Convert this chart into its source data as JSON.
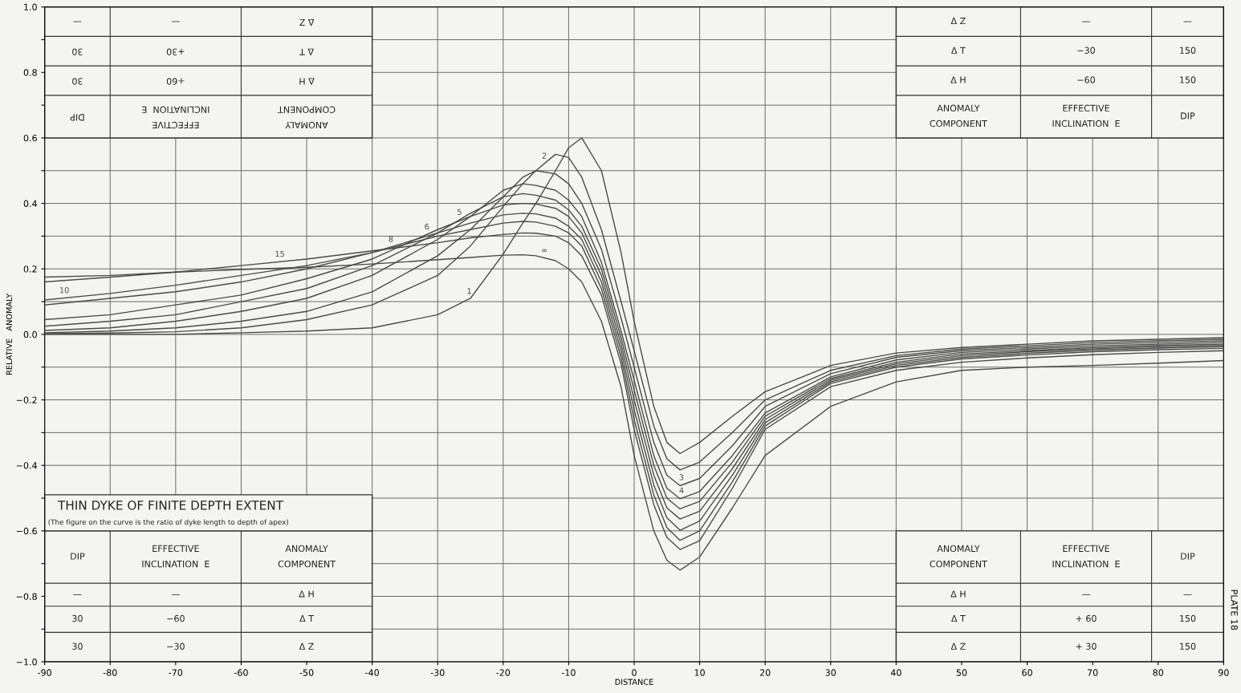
{
  "chart_data": {
    "type": "line",
    "title": "THIN DYKE OF FINITE DEPTH EXTENT",
    "subtitle": "(The figure on the curve is the ratio of dyke length to depth of apex)",
    "xlabel": "DISTANCE",
    "ylabel": "RELATIVE   ANOMALY",
    "x": [
      -90,
      -80,
      -70,
      -60,
      -50,
      -40,
      -30,
      -25,
      -20,
      -17,
      -15,
      -12,
      -10,
      -8,
      -5,
      -2,
      0,
      3,
      5,
      7,
      10,
      15,
      20,
      30,
      40,
      50,
      60,
      70,
      80,
      90
    ],
    "series": [
      {
        "name": "1",
        "color": "#4a4a4a",
        "values": [
          0,
          0,
          0,
          0.005,
          0.01,
          0.02,
          0.06,
          0.11,
          0.245,
          0.34,
          0.4,
          0.5,
          0.57,
          0.6,
          0.5,
          0.25,
          0.04,
          -0.22,
          -0.33,
          -0.364,
          -0.33,
          -0.25,
          -0.175,
          -0.095,
          -0.057,
          -0.04,
          -0.03,
          -0.02,
          -0.015,
          -0.01
        ]
      },
      {
        "name": "2",
        "color": "#4a4a4a",
        "values": [
          0.002,
          0.004,
          0.008,
          0.02,
          0.045,
          0.09,
          0.18,
          0.27,
          0.39,
          0.46,
          0.5,
          0.55,
          0.54,
          0.48,
          0.32,
          0.1,
          -0.05,
          -0.28,
          -0.38,
          -0.414,
          -0.39,
          -0.3,
          -0.2,
          -0.11,
          -0.065,
          -0.045,
          -0.035,
          -0.025,
          -0.02,
          -0.015
        ]
      },
      {
        "name": "3",
        "color": "#4a4a4a",
        "values": [
          0.005,
          0.01,
          0.02,
          0.04,
          0.07,
          0.13,
          0.24,
          0.32,
          0.42,
          0.48,
          0.5,
          0.49,
          0.46,
          0.4,
          0.26,
          0.05,
          -0.1,
          -0.33,
          -0.43,
          -0.462,
          -0.44,
          -0.34,
          -0.22,
          -0.12,
          -0.07,
          -0.05,
          -0.04,
          -0.03,
          -0.025,
          -0.02
        ]
      },
      {
        "name": "4",
        "color": "#4a4a4a",
        "values": [
          0.012,
          0.02,
          0.04,
          0.07,
          0.11,
          0.18,
          0.29,
          0.36,
          0.44,
          0.46,
          0.455,
          0.44,
          0.41,
          0.36,
          0.22,
          0.01,
          -0.14,
          -0.37,
          -0.47,
          -0.502,
          -0.48,
          -0.37,
          -0.24,
          -0.13,
          -0.078,
          -0.055,
          -0.045,
          -0.035,
          -0.03,
          -0.025
        ]
      },
      {
        "name": "5",
        "color": "#4a4a4a",
        "values": [
          0.025,
          0.04,
          0.06,
          0.1,
          0.14,
          0.21,
          0.31,
          0.37,
          0.42,
          0.43,
          0.425,
          0.41,
          0.38,
          0.33,
          0.2,
          -0.01,
          -0.17,
          -0.4,
          -0.5,
          -0.533,
          -0.51,
          -0.39,
          -0.25,
          -0.135,
          -0.085,
          -0.06,
          -0.05,
          -0.04,
          -0.034,
          -0.03
        ]
      },
      {
        "name": "6",
        "color": "#4a4a4a",
        "values": [
          0.045,
          0.06,
          0.09,
          0.12,
          0.17,
          0.23,
          0.32,
          0.36,
          0.395,
          0.4,
          0.398,
          0.385,
          0.36,
          0.31,
          0.18,
          -0.03,
          -0.2,
          -0.43,
          -0.53,
          -0.564,
          -0.54,
          -0.41,
          -0.26,
          -0.14,
          -0.09,
          -0.065,
          -0.053,
          -0.044,
          -0.038,
          -0.034
        ]
      },
      {
        "name": "8",
        "color": "#4a4a4a",
        "values": [
          0.09,
          0.11,
          0.13,
          0.16,
          0.2,
          0.25,
          0.31,
          0.34,
          0.365,
          0.37,
          0.368,
          0.355,
          0.33,
          0.29,
          0.16,
          -0.05,
          -0.23,
          -0.46,
          -0.56,
          -0.598,
          -0.57,
          -0.43,
          -0.27,
          -0.145,
          -0.095,
          -0.07,
          -0.058,
          -0.048,
          -0.042,
          -0.038
        ]
      },
      {
        "name": "10",
        "color": "#4a4a4a",
        "values": [
          0.105,
          0.125,
          0.15,
          0.18,
          0.21,
          0.25,
          0.3,
          0.32,
          0.34,
          0.345,
          0.343,
          0.33,
          0.31,
          0.27,
          0.14,
          -0.07,
          -0.26,
          -0.49,
          -0.59,
          -0.629,
          -0.6,
          -0.45,
          -0.28,
          -0.15,
          -0.1,
          -0.075,
          -0.063,
          -0.053,
          -0.047,
          -0.043
        ]
      },
      {
        "name": "15",
        "color": "#4a4a4a",
        "values": [
          0.16,
          0.175,
          0.19,
          0.21,
          0.23,
          0.255,
          0.28,
          0.295,
          0.305,
          0.31,
          0.309,
          0.3,
          0.28,
          0.24,
          0.12,
          -0.09,
          -0.29,
          -0.52,
          -0.62,
          -0.657,
          -0.63,
          -0.47,
          -0.29,
          -0.16,
          -0.11,
          -0.085,
          -0.072,
          -0.062,
          -0.055,
          -0.05
        ]
      },
      {
        "name": "∞",
        "color": "#4a4a4a",
        "values": [
          0.175,
          0.18,
          0.19,
          0.198,
          0.205,
          0.215,
          0.228,
          0.235,
          0.242,
          0.243,
          0.24,
          0.225,
          0.2,
          0.16,
          0.04,
          -0.16,
          -0.37,
          -0.6,
          -0.69,
          -0.72,
          -0.68,
          -0.53,
          -0.37,
          -0.22,
          -0.145,
          -0.11,
          -0.1,
          -0.095,
          -0.088,
          -0.08
        ]
      }
    ],
    "xlim": [
      -90,
      90
    ],
    "xticks": [
      -90,
      -80,
      -70,
      -60,
      -50,
      -40,
      -30,
      -20,
      -10,
      0,
      10,
      20,
      30,
      40,
      50,
      60,
      70,
      80,
      90
    ],
    "ylim": [
      -1.0,
      1.0
    ],
    "yticks": [
      {
        "value": -1.0,
        "label": "−1.0"
      },
      {
        "value": -0.9,
        "label": null
      },
      {
        "value": -0.8,
        "label": "−0.8"
      },
      {
        "value": -0.7,
        "label": null
      },
      {
        "value": -0.6,
        "label": "−0.6"
      },
      {
        "value": -0.5,
        "label": null
      },
      {
        "value": -0.4,
        "label": "−0.4"
      },
      {
        "value": -0.3,
        "label": null
      },
      {
        "value": -0.2,
        "label": "−0.2"
      },
      {
        "value": -0.1,
        "label": null
      },
      {
        "value": 0.0,
        "label": "0.0"
      },
      {
        "value": 0.1,
        "label": null
      },
      {
        "value": 0.2,
        "label": "0.2"
      },
      {
        "value": 0.3,
        "label": null
      },
      {
        "value": 0.4,
        "label": "0.4"
      },
      {
        "value": 0.5,
        "label": null
      },
      {
        "value": 0.6,
        "label": "0.6"
      },
      {
        "value": 0.7,
        "label": null
      },
      {
        "value": 0.8,
        "label": "0.8"
      },
      {
        "value": 0.9,
        "label": null
      },
      {
        "value": 1.0,
        "label": "1.0"
      }
    ],
    "grid": true,
    "marker": "none",
    "line_style": "solid",
    "legend": false,
    "annotations": [
      "ANOMALY\nCOMPONENT",
      "EFFECTIVE\nINCLINATION  E",
      "DIP",
      "Δ H",
      "+60",
      "30",
      "Δ T",
      "+30",
      "30",
      "Δ Z",
      "—",
      "—",
      "ANOMALY\nCOMPONENT",
      "EFFECTIVE\nINCLINATION  E",
      "DIP",
      "Δ H",
      "−60",
      "150",
      "Δ T",
      "−30",
      "150",
      "Δ Z",
      "—",
      "—",
      "ANOMALY\nCOMPONENT",
      "EFFECTIVE\nINCLINATION  E",
      "DIP",
      "Δ H",
      "—",
      "—",
      "Δ T",
      "−60",
      "30",
      "Δ Z",
      "−30",
      "30",
      "ANOMALY\nCOMPONENT",
      "EFFECTIVE\nINCLINATION  E",
      "DIP",
      "Δ H",
      "—",
      "—",
      "Δ T",
      "+ 60",
      "150",
      "Δ Z",
      "+ 30",
      "150",
      "PLATE 18"
    ]
  }
}
